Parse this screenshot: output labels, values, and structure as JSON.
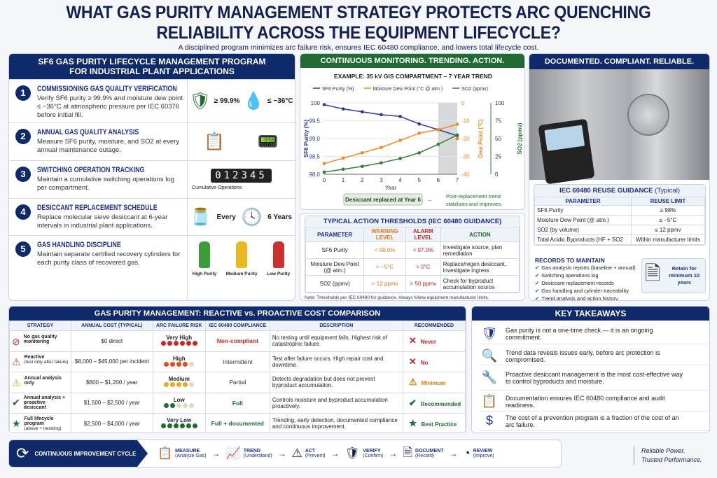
{
  "title": {
    "line1": "WHAT GAS PURITY MANAGEMENT STRATEGY PROTECTS ARC QUENCHING",
    "line2": "RELIABILITY ACROSS THE EQUIPMENT LIFECYCLE?",
    "subtitle": "A disciplined program minimizes arc failure risk, ensures IEC 60480 compliance, and lowers total lifecycle cost."
  },
  "colors": {
    "navy": "#0f2a6b",
    "green": "#1f6b32",
    "orange": "#e07a1a",
    "red": "#c62828",
    "purity": "#2b3a8c",
    "dew": "#f08a24",
    "so2": "#2e7d32"
  },
  "program": {
    "header_line1": "SF6 GAS PURITY LIFECYCLE MANAGEMENT PROGRAM",
    "header_line2": "FOR INDUSTRIAL PLANT APPLICATIONS",
    "steps": [
      {
        "n": "1",
        "title": "COMMISSIONING GAS QUALITY VERIFICATION",
        "desc": "Verify SF6 purity ≥ 99.9% and moisture dew point ≤ −36°C at atmospheric pressure per IEC 60376 before initial fill.",
        "v1": "≥ 99.9%",
        "v2": "≤ −36°C",
        "icons": [
          "shield-check-icon",
          "water-drop-icon"
        ]
      },
      {
        "n": "2",
        "title": "ANNUAL GAS QUALITY ANALYSIS",
        "desc": "Measure SF6 purity, moisture, and SO2 at every annual maintenance outage.",
        "icons": [
          "clipboard-checklist-icon",
          "gas-analyzer-icon"
        ]
      },
      {
        "n": "3",
        "title": "SWITCHING OPERATION TRACKING",
        "desc": "Maintain a cumulative switching operations log per compartment.",
        "counter": "012345",
        "counter_label": "Cumulative Operations"
      },
      {
        "n": "4",
        "title": "DESICCANT REPLACEMENT SCHEDULE",
        "desc": "Replace molecular sieve desiccant at 6-year intervals in industrial plant applications.",
        "v1": "Every",
        "v2": "6 Years",
        "icons": [
          "desiccant-canister-icon",
          "clock-icon"
        ]
      },
      {
        "n": "5",
        "title": "GAS HANDLING DISCIPLINE",
        "desc": "Maintain separate certified recovery cylinders for each purity class of recovered gas.",
        "cylinders": [
          {
            "label": "High Purity",
            "color": "#3f9a3a"
          },
          {
            "label": "Medium Purity",
            "color": "#e8b820"
          },
          {
            "label": "Low Purity",
            "color": "#c9332b"
          }
        ]
      }
    ]
  },
  "monitoring": {
    "header": "CONTINUOUS MONITORING. TRENDING. ACTION.",
    "callout": "Desiccant replaced at Year 6",
    "callout_note_line1": "Post-replacement trend",
    "callout_note_line2": "stabilizes and improves."
  },
  "chart_data": {
    "type": "line",
    "title": "EXAMPLE: 35 kV GIS COMPARTMENT – 7 YEAR TREND",
    "xlabel": "Year",
    "x": [
      0,
      1,
      2,
      3,
      4,
      5,
      6,
      7
    ],
    "xlim": [
      0,
      7
    ],
    "axes": [
      {
        "label": "SF6 Purity (%)",
        "side": "left",
        "ylim": [
          98.0,
          100
        ],
        "ticks": [
          "98.0",
          "98.5",
          "99.0",
          "99.5",
          "100"
        ]
      },
      {
        "label": "Dew Point (°C)",
        "side": "right",
        "ylim": [
          -40,
          0
        ],
        "ticks": [
          "-40",
          "-30",
          "-20",
          "-10",
          "0"
        ]
      },
      {
        "label": "SO2 (ppmv)",
        "side": "right-outer",
        "ylim": [
          0,
          100
        ],
        "ticks": [
          "0",
          "25",
          "50",
          "75",
          "100"
        ]
      }
    ],
    "series": [
      {
        "name": "SF6 Purity (%)",
        "axis": 0,
        "values": [
          99.95,
          99.83,
          99.75,
          99.67,
          99.62,
          99.41,
          99.25,
          99.08
        ]
      },
      {
        "name": "Moisture Dew Point (°C @ atm.)",
        "axis": 1,
        "values": [
          -34,
          -31,
          -28,
          -25,
          -21,
          -17,
          -15,
          -12
        ],
        "post_replacement": {
          "x": 7,
          "y": -20
        }
      },
      {
        "name": "SO2 (ppmv)",
        "axis": 2,
        "values": [
          3,
          7,
          11,
          16,
          22,
          30,
          42,
          55
        ]
      }
    ],
    "shaded_range": [
      6,
      7
    ],
    "grid": true,
    "legend": "top"
  },
  "thresholds": {
    "title": "TYPICAL ACTION THRESHOLDS (IEC 60480 GUIDANCE)",
    "headers": [
      "PARAMETER",
      "WARNING LEVEL",
      "ALARM LEVEL",
      "ACTION"
    ],
    "rows": [
      [
        "SF6 Purity",
        "< 98.0%",
        "< 97.0%",
        "Investigate source, plan remediation"
      ],
      [
        "Moisture Dew Point (@ atm.)",
        "> −5°C",
        "> 0°C",
        "Replace/regen desiccant, investigate ingress"
      ],
      [
        "SO2 (ppmv)",
        "> 12 ppmv",
        "> 50 ppmv",
        "Check for byproduct accumulation source"
      ]
    ],
    "note": "Note: Thresholds per IEC 60480 for guidance. Always follow equipment manufacturer limits."
  },
  "right": {
    "header": "DOCUMENTED. COMPLIANT. RELIABLE.",
    "reuse_title": "IEC 60480 REUSE GUIDANCE",
    "reuse_title_suffix": "(Typical)",
    "reuse_headers": [
      "PARAMETER",
      "REUSE LIMIT"
    ],
    "reuse_rows": [
      [
        "SF6 Purity",
        "≥ 98%"
      ],
      [
        "Moisture Dew Point (@ atm.)",
        "≤ −5°C"
      ],
      [
        "SO2 (by volume)",
        "≤ 12 ppmv"
      ],
      [
        "Total Acidic Byproducts (HF + SO2",
        "Within manufacturer limits"
      ]
    ],
    "records_title": "RECORDS TO MAINTAIN",
    "records": [
      "Gas analysis reports (baseline + annual)",
      "Switching operations log",
      "Desiccant replacement records",
      "Gas handling and cylinder traceability",
      "Trend analysis and action history"
    ],
    "retain": "Retain for minimum 10 years"
  },
  "comparison": {
    "title": "GAS PURITY MANAGEMENT: REACTIVE vs. PROACTIVE COST COMPARISON",
    "headers": [
      "STRATEGY",
      "ANNUAL COST (TYPICAL)",
      "ARC FAILURE RISK",
      "IEC 60480 COMPLIANCE",
      "DESCRIPTION",
      "RECOMMENDED"
    ],
    "rows": [
      {
        "icon": "no-monitoring-icon",
        "strategy": "No gas quality monitoring",
        "sub": "",
        "cost": "$0 direct",
        "risk": "Very High",
        "risk_level": 6,
        "risk_color": "#c62828",
        "compliance": "Non-compliant",
        "comp_color": "#c62828",
        "desc": "No testing until equipment fails. Highest risk of catastrophic failure.",
        "rec": "Never",
        "rec_icon": "x-icon",
        "rec_color": "#c62828"
      },
      {
        "icon": "warning-orange-icon",
        "strategy": "Reactive",
        "sub": "(test only after failure)",
        "cost": "$8,000 – $45,000 per incident",
        "risk": "High",
        "risk_level": 4,
        "risk_color": "#e0501e",
        "compliance": "Intermittent",
        "comp_color": "#333333",
        "desc": "Test after failure occurs. High repair cost and downtime.",
        "rec": "No",
        "rec_icon": "x-icon",
        "rec_color": "#c62828"
      },
      {
        "icon": "warning-yellow-icon",
        "strategy": "Annual analysis only",
        "sub": "",
        "cost": "$600 – $1,200 / year",
        "risk": "Medium",
        "risk_level": 4,
        "risk_color": "#e8a820",
        "compliance": "Partial",
        "comp_color": "#333333",
        "desc": "Detects degradation but does not prevent byproduct accumulation.",
        "rec": "Minimum",
        "rec_icon": "warning-icon",
        "rec_color": "#e07a1a"
      },
      {
        "icon": "check-circle-icon",
        "strategy": "Annual analysis + proactive desiccant",
        "sub": "",
        "cost": "$1,500 – $2,500 / year",
        "risk": "Low",
        "risk_level": 2,
        "risk_color": "#1f6b32",
        "compliance": "Full",
        "comp_color": "#1f6b32",
        "desc": "Controls moisture and byproduct accumulation proactively.",
        "rec": "Recommended",
        "rec_icon": "check-circle-icon",
        "rec_color": "#1f6b32"
      },
      {
        "icon": "star-circle-icon",
        "strategy": "Full lifecycle program",
        "sub": "(above + trending)",
        "cost": "$2,500 – $4,000 / year",
        "risk": "Very Low",
        "risk_level": 6,
        "risk_color": "#1f6b32",
        "compliance": "Full + documented",
        "comp_color": "#1f6b32",
        "desc": "Trending, early detection, documented compliance and continuous improvement.",
        "rec": "Best Practice",
        "rec_icon": "star-circle-icon",
        "rec_color": "#1f6b32"
      }
    ]
  },
  "takeaways": {
    "title": "KEY TAKEAWAYS",
    "items": [
      {
        "icon": "shield-check-icon",
        "text": "Gas purity is not a one-time check — it is an ongoing commitment."
      },
      {
        "icon": "magnifier-icon",
        "text": "Trend data reveals issues early, before arc protection is compromised."
      },
      {
        "icon": "wrench-icon",
        "text": "Proactive desiccant management is the most cost-effective way to control byproducts and moisture."
      },
      {
        "icon": "clipboard-icon",
        "text": "Documentation ensures IEC 60480 compliance and audit readiness."
      },
      {
        "icon": "dollar-icon",
        "text": "The cost of a prevention program is a fraction of the cost of an arc failure."
      }
    ]
  },
  "cycle": {
    "title": "CONTINUOUS IMPROVEMENT CYCLE",
    "steps": [
      {
        "icon": "clipboard-icon",
        "label": "MEASURE",
        "sub": "(Analyze Gas)"
      },
      {
        "icon": "trend-chart-icon",
        "label": "TREND",
        "sub": "(Understand)"
      },
      {
        "icon": "warning-icon",
        "label": "ACT",
        "sub": "(Prevent)"
      },
      {
        "icon": "shield-icon",
        "label": "VERIFY",
        "sub": "(Confirm)"
      },
      {
        "icon": "document-icon",
        "label": "DOCUMENT",
        "sub": "(Record)"
      },
      {
        "icon": "pie-chart-icon",
        "label": "REVIEW",
        "sub": "(Improve)"
      }
    ]
  },
  "tagline": {
    "line1": "Reliable Power.",
    "line2": "Trusted Performance."
  }
}
